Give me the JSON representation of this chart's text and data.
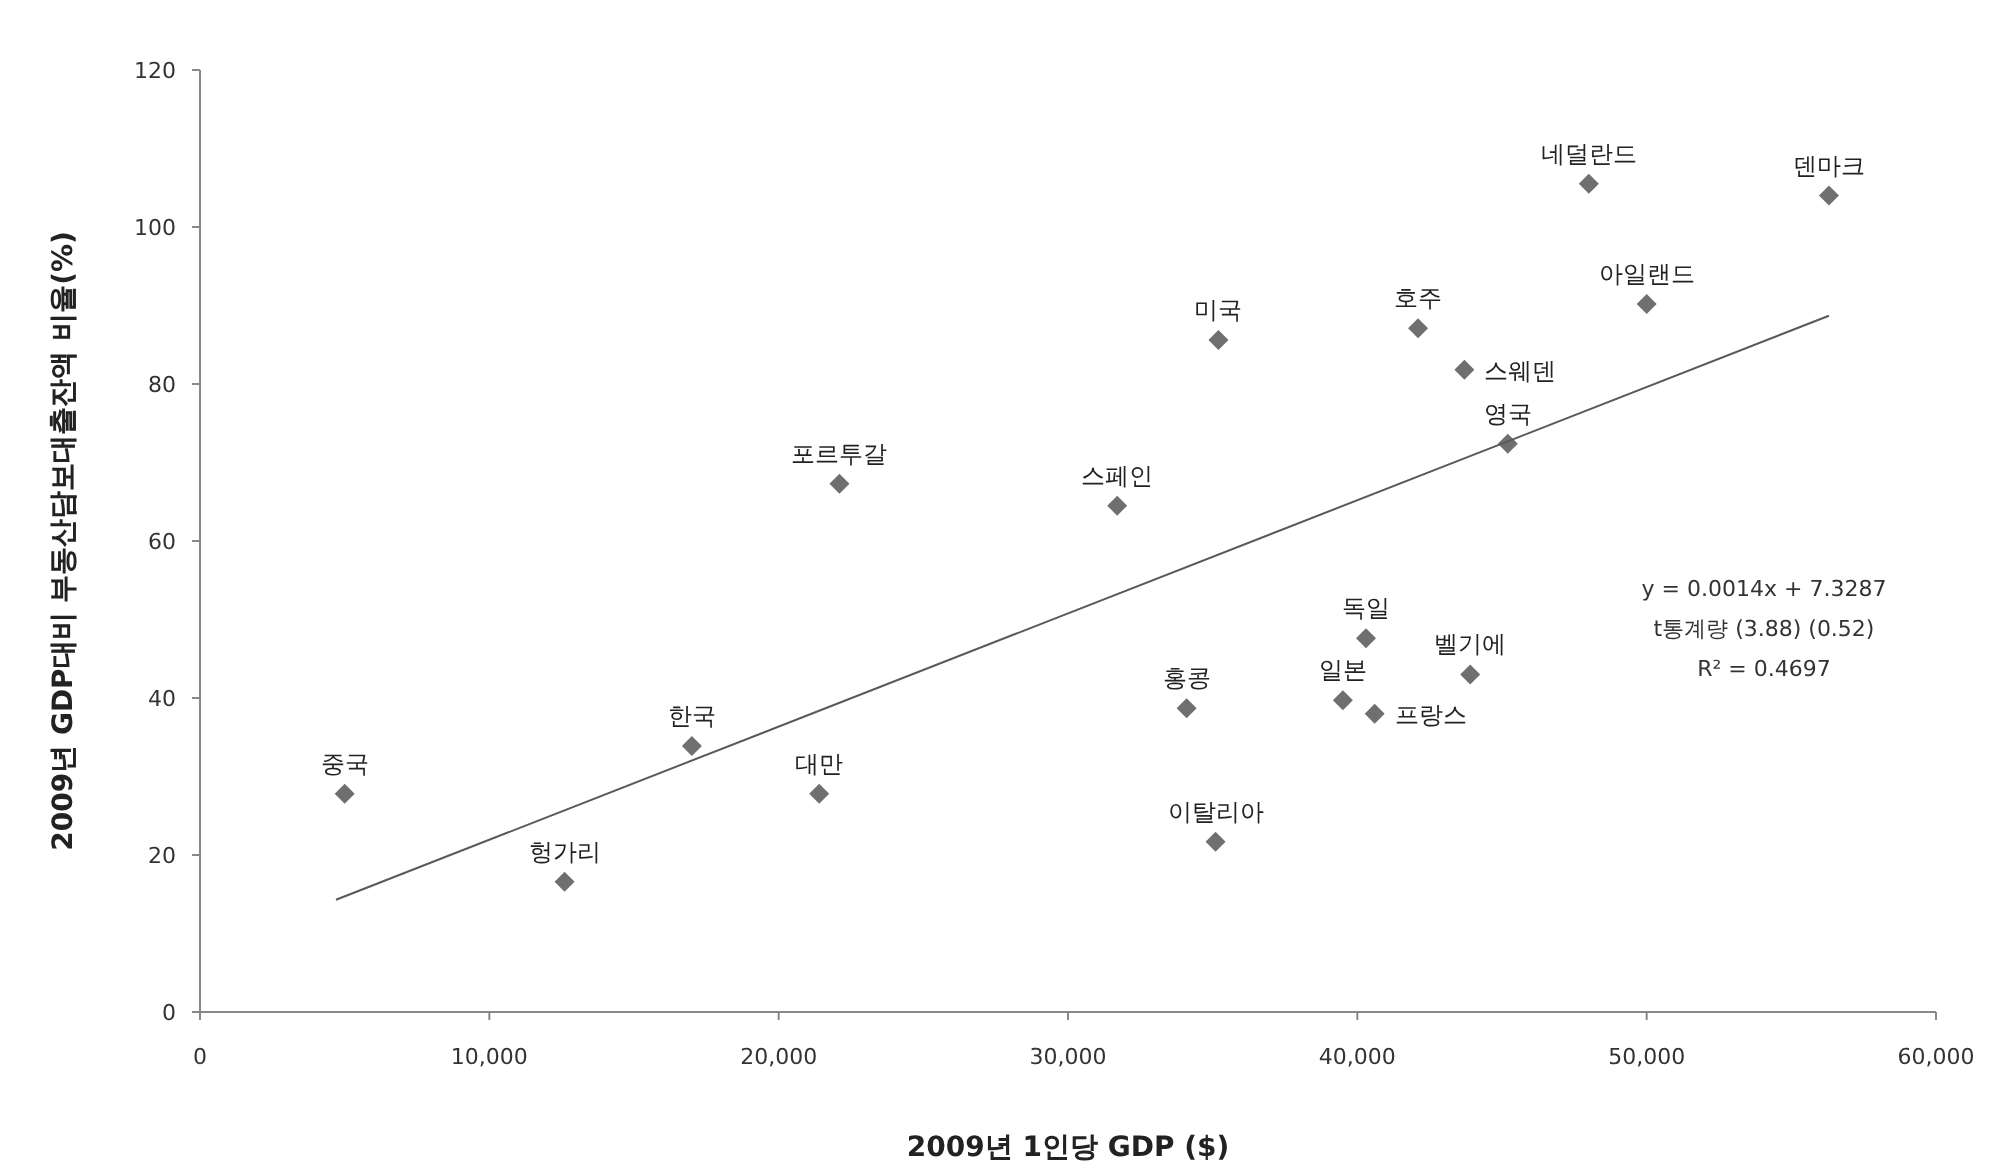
{
  "chart_data": {
    "type": "scatter",
    "xlabel": "2009년 1인당 GDP ($)",
    "ylabel": "2009년 GDP대비 부동산담보대출잔액 비율(%)",
    "xlim": [
      0,
      60000
    ],
    "ylim": [
      0,
      120
    ],
    "xticks": [
      0,
      {
        "value": 10000,
        "label": "10,000"
      },
      {
        "value": 20000,
        "label": "20,000"
      },
      {
        "value": 30000,
        "label": "30,000"
      },
      {
        "value": 40000,
        "label": "40,000"
      },
      {
        "value": 50000,
        "label": "50,000"
      },
      {
        "value": 60000,
        "label": "60,000"
      }
    ],
    "yticks": [
      0,
      20,
      40,
      60,
      80,
      100,
      120
    ],
    "grid": false,
    "series": [
      {
        "marker": "diamond",
        "color": "#6f6f6f",
        "x": [
          5000,
          12600,
          17000,
          21400,
          22100,
          31700,
          35200,
          34100,
          35100,
          40300,
          39500,
          40600,
          43900,
          42100,
          43700,
          45200,
          48000,
          50000,
          56300
        ],
        "values": [
          27.8,
          16.6,
          33.9,
          27.8,
          67.3,
          64.5,
          85.6,
          38.7,
          21.7,
          47.6,
          39.7,
          38.0,
          43.0,
          87.1,
          81.8,
          72.4,
          105.5,
          90.2,
          104.0
        ]
      },
      {
        "type": "line",
        "color": "#595959",
        "x": [
          4700,
          56300
        ],
        "values": [
          14.3,
          88.7
        ]
      }
    ],
    "annotations": [
      {
        "text": "중국",
        "x": 5000,
        "y": 27.8
      },
      {
        "text": "헝가리",
        "x": 12600,
        "y": 16.6
      },
      {
        "text": "한국",
        "x": 17000,
        "y": 33.9
      },
      {
        "text": "대만",
        "x": 21400,
        "y": 27.8
      },
      {
        "text": "포르투갈",
        "x": 22100,
        "y": 67.3
      },
      {
        "text": "스페인",
        "x": 31700,
        "y": 64.5
      },
      {
        "text": "미국",
        "x": 35200,
        "y": 85.6
      },
      {
        "text": "홍콩",
        "x": 34100,
        "y": 38.7
      },
      {
        "text": "이탈리아",
        "x": 35100,
        "y": 21.7
      },
      {
        "text": "독일",
        "x": 40300,
        "y": 47.6
      },
      {
        "text": "일본",
        "x": 39500,
        "y": 39.7
      },
      {
        "text": "프랑스",
        "x": 40600,
        "y": 38.0
      },
      {
        "text": "벨기에",
        "x": 43900,
        "y": 43.0
      },
      {
        "text": "호주",
        "x": 42100,
        "y": 87.1
      },
      {
        "text": "스웨덴",
        "x": 43700,
        "y": 81.8
      },
      {
        "text": "영국",
        "x": 45200,
        "y": 72.4
      },
      {
        "text": "네덜란드",
        "x": 48000,
        "y": 105.5
      },
      {
        "text": "아일랜드",
        "x": 50000,
        "y": 90.2
      },
      {
        "text": "덴마크",
        "x": 56300,
        "y": 104.0
      },
      "y = 0.0014x + 7.3287",
      "t통계량  (3.88)  (0.52)",
      "R² = 0.4697"
    ]
  }
}
